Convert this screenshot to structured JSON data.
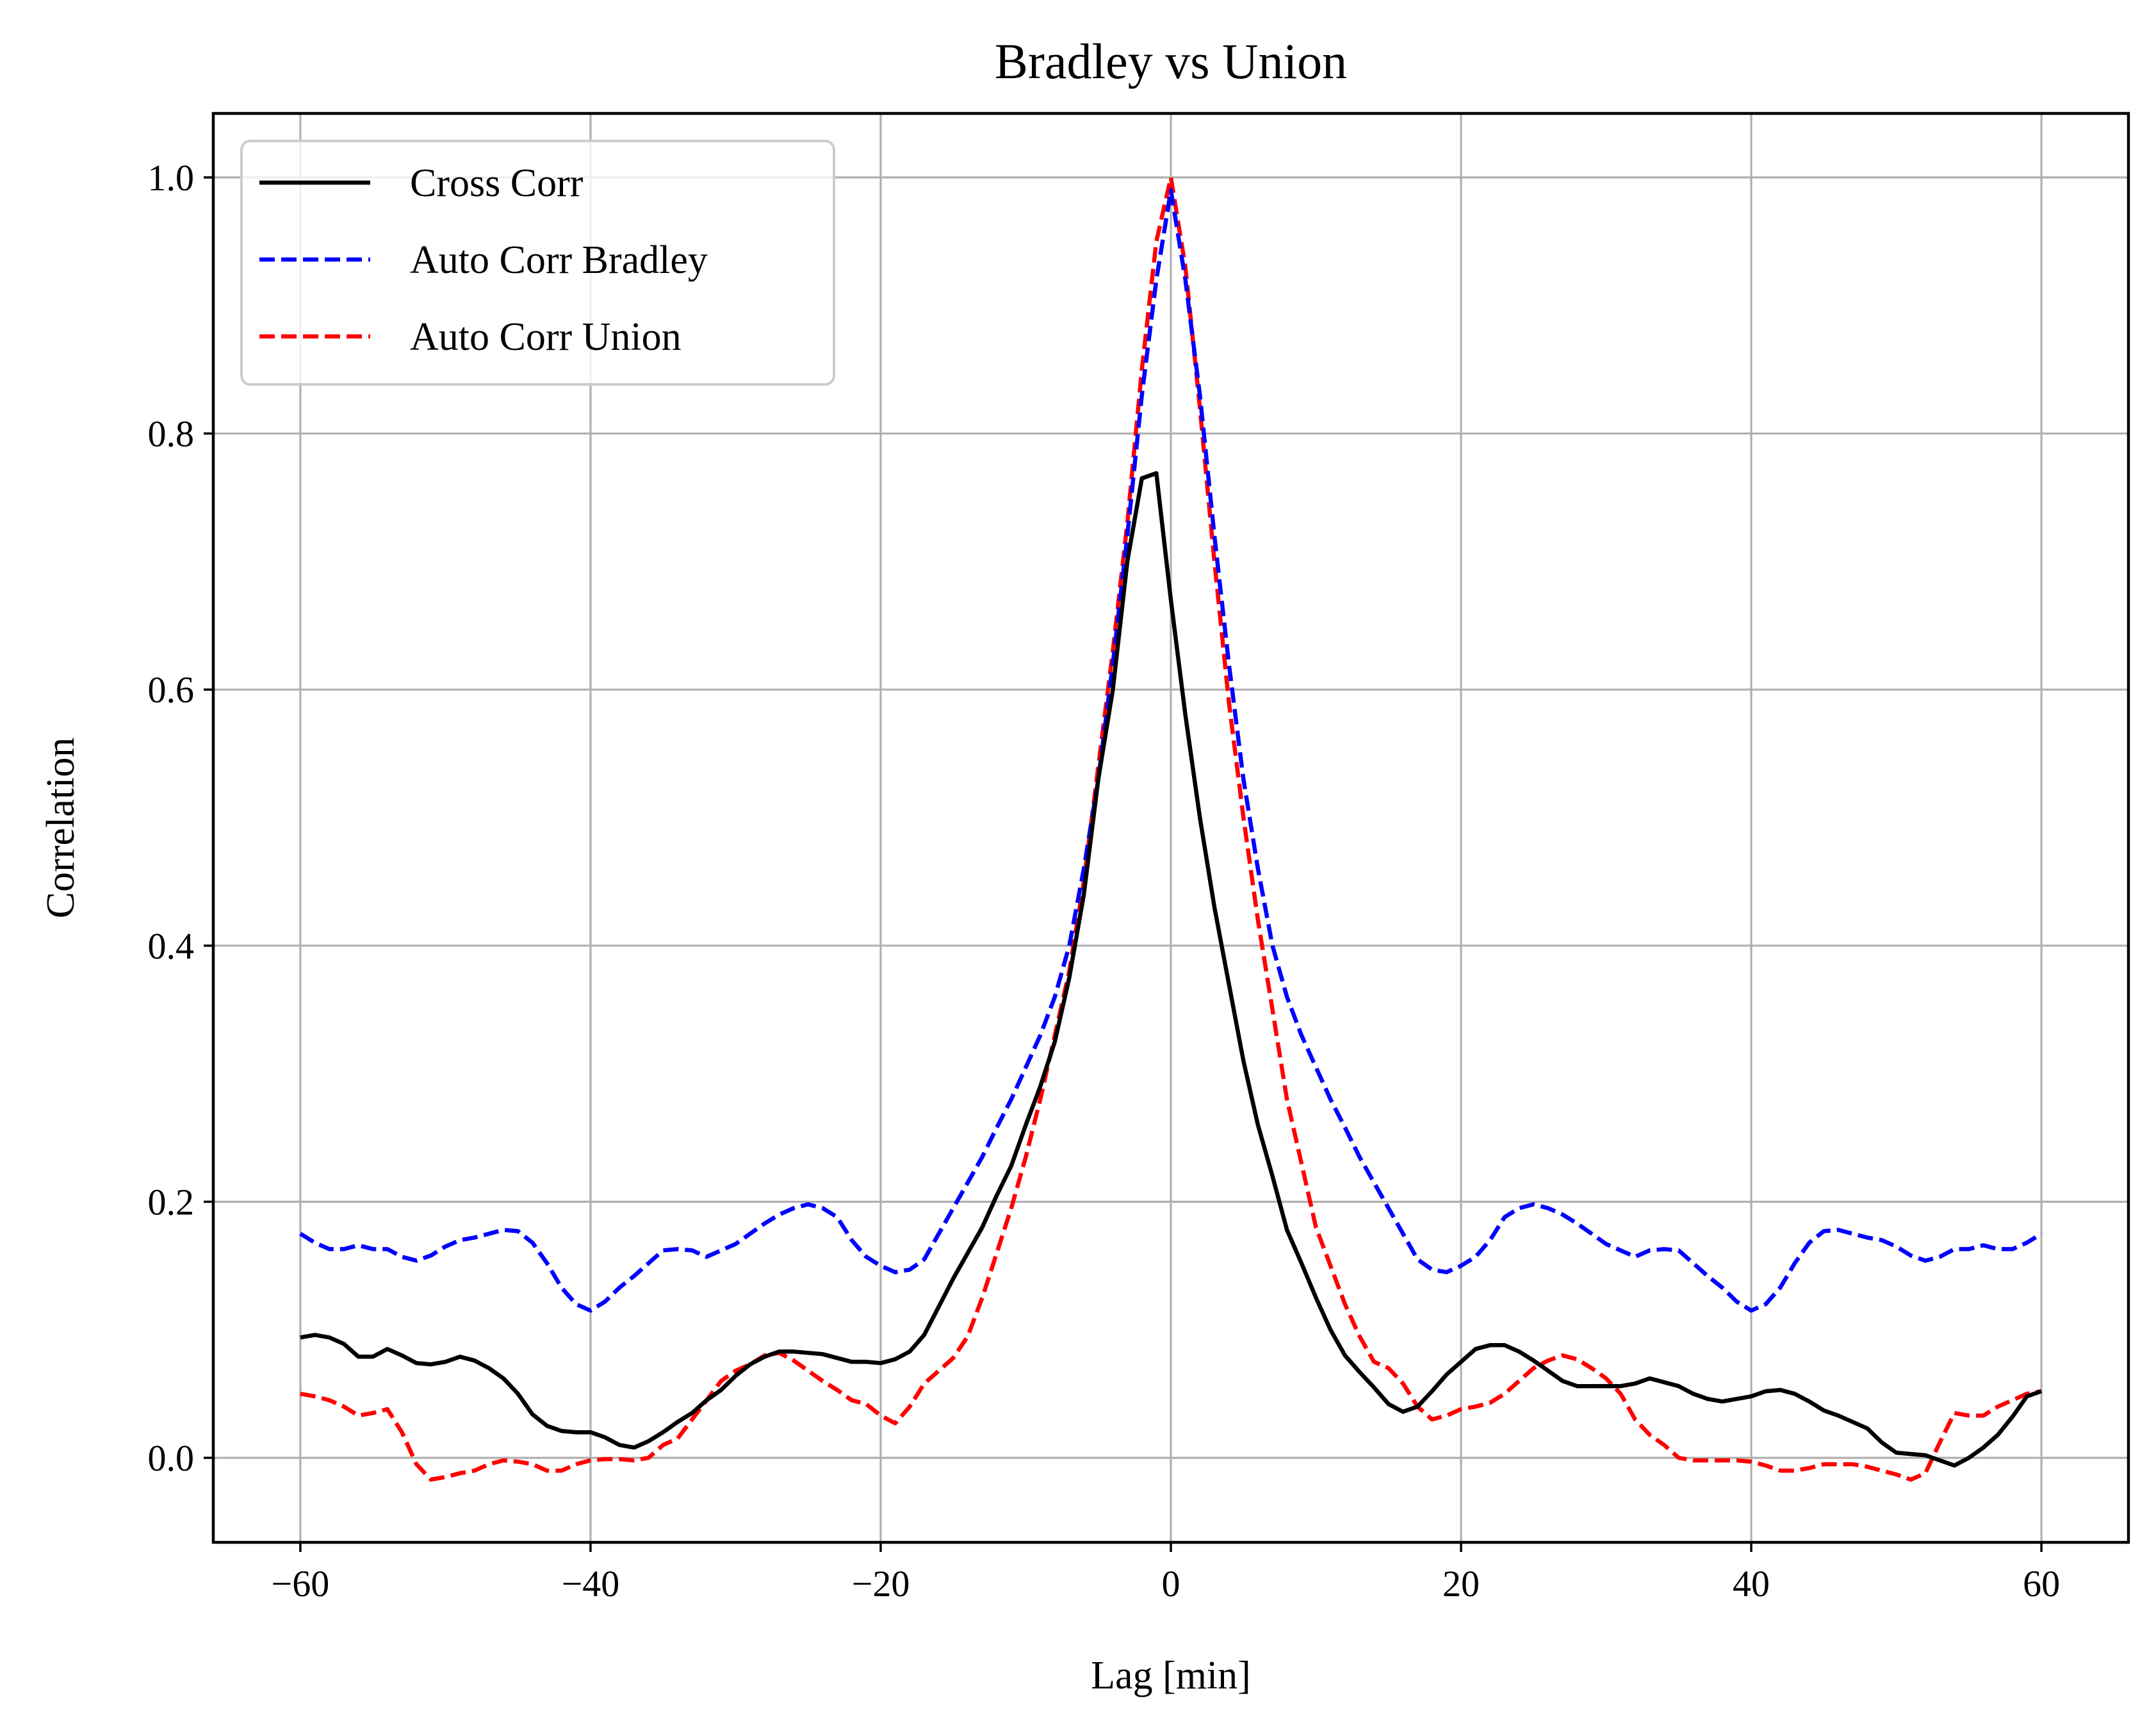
{
  "chart_data": {
    "type": "line",
    "title": "Bradley vs Union",
    "xlabel": "Lag [min]",
    "ylabel": "Correlation",
    "xlim": [
      -66,
      66
    ],
    "ylim": [
      -0.066,
      1.05
    ],
    "xticks": [
      -60,
      -40,
      -20,
      0,
      20,
      40,
      60
    ],
    "xtick_labels": [
      "−60",
      "−40",
      "−20",
      "0",
      "20",
      "40",
      "60"
    ],
    "yticks": [
      0.0,
      0.2,
      0.4,
      0.6,
      0.8,
      1.0
    ],
    "ytick_labels": [
      "0.0",
      "0.2",
      "0.4",
      "0.6",
      "0.8",
      "1.0"
    ],
    "grid": true,
    "legend_position": "upper-left",
    "series": [
      {
        "name": "Cross Corr",
        "color": "#000000",
        "style": "solid",
        "x": [
          -60,
          -59,
          -58,
          -57,
          -56,
          -55,
          -54,
          -53,
          -52,
          -51,
          -50,
          -49,
          -48,
          -47,
          -46,
          -45,
          -44,
          -43,
          -42,
          -41,
          -40,
          -39,
          -38,
          -37,
          -36,
          -35,
          -34,
          -33,
          -32,
          -31,
          -30,
          -29,
          -28,
          -27,
          -26,
          -25,
          -24,
          -23,
          -22,
          -21,
          -20,
          -19,
          -18,
          -17,
          -16,
          -15,
          -14,
          -13,
          -12,
          -11,
          -10,
          -9,
          -8,
          -7,
          -6,
          -5,
          -4,
          -3,
          -2,
          -1,
          0,
          1,
          2,
          3,
          4,
          5,
          6,
          7,
          8,
          9,
          10,
          11,
          12,
          13,
          14,
          15,
          16,
          17,
          18,
          19,
          20,
          21,
          22,
          23,
          24,
          25,
          26,
          27,
          28,
          29,
          30,
          31,
          32,
          33,
          34,
          35,
          36,
          37,
          38,
          39,
          40,
          41,
          42,
          43,
          44,
          45,
          46,
          47,
          48,
          49,
          50,
          51,
          52,
          53,
          54,
          55,
          56,
          57,
          58,
          59,
          60
        ],
        "y": [
          0.094,
          0.096,
          0.094,
          0.089,
          0.079,
          0.079,
          0.085,
          0.08,
          0.074,
          0.073,
          0.075,
          0.079,
          0.076,
          0.07,
          0.062,
          0.05,
          0.034,
          0.025,
          0.021,
          0.02,
          0.02,
          0.016,
          0.01,
          0.008,
          0.013,
          0.02,
          0.028,
          0.035,
          0.045,
          0.053,
          0.064,
          0.073,
          0.079,
          0.083,
          0.083,
          0.082,
          0.081,
          0.078,
          0.075,
          0.075,
          0.074,
          0.077,
          0.083,
          0.096,
          0.118,
          0.14,
          0.16,
          0.18,
          0.205,
          0.228,
          0.26,
          0.29,
          0.325,
          0.375,
          0.44,
          0.53,
          0.6,
          0.7,
          0.765,
          0.769,
          0.67,
          0.58,
          0.5,
          0.43,
          0.37,
          0.31,
          0.26,
          0.22,
          0.178,
          0.152,
          0.125,
          0.1,
          0.08,
          0.067,
          0.055,
          0.042,
          0.036,
          0.04,
          0.052,
          0.065,
          0.075,
          0.085,
          0.088,
          0.088,
          0.083,
          0.076,
          0.068,
          0.06,
          0.056,
          0.056,
          0.056,
          0.056,
          0.058,
          0.062,
          0.059,
          0.056,
          0.05,
          0.046,
          0.044,
          0.046,
          0.048,
          0.052,
          0.053,
          0.05,
          0.044,
          0.037,
          0.033,
          0.028,
          0.023,
          0.012,
          0.004,
          0.003,
          0.002,
          -0.002,
          -0.006,
          0.0,
          0.008,
          0.018,
          0.032,
          0.048,
          0.052
        ]
      },
      {
        "name": "Auto Corr Bradley",
        "color": "#0000ff",
        "style": "dashed",
        "x": [
          -60,
          -59,
          -58,
          -57,
          -56,
          -55,
          -54,
          -53,
          -52,
          -51,
          -50,
          -49,
          -48,
          -47,
          -46,
          -45,
          -44,
          -43,
          -42,
          -41,
          -40,
          -39,
          -38,
          -37,
          -36,
          -35,
          -34,
          -33,
          -32,
          -31,
          -30,
          -29,
          -28,
          -27,
          -26,
          -25,
          -24,
          -23,
          -22,
          -21,
          -20,
          -19,
          -18,
          -17,
          -16,
          -15,
          -14,
          -13,
          -12,
          -11,
          -10,
          -9,
          -8,
          -7,
          -6,
          -5,
          -4,
          -3,
          -2,
          -1,
          0,
          1,
          2,
          3,
          4,
          5,
          6,
          7,
          8,
          9,
          10,
          11,
          12,
          13,
          14,
          15,
          16,
          17,
          18,
          19,
          20,
          21,
          22,
          23,
          24,
          25,
          26,
          27,
          28,
          29,
          30,
          31,
          32,
          33,
          34,
          35,
          36,
          37,
          38,
          39,
          40,
          41,
          42,
          43,
          44,
          45,
          46,
          47,
          48,
          49,
          50,
          51,
          52,
          53,
          54,
          55,
          56,
          57,
          58,
          59,
          60
        ],
        "y": [
          0.175,
          0.168,
          0.163,
          0.163,
          0.166,
          0.163,
          0.163,
          0.157,
          0.154,
          0.158,
          0.165,
          0.17,
          0.172,
          0.175,
          0.178,
          0.177,
          0.168,
          0.152,
          0.133,
          0.12,
          0.115,
          0.122,
          0.133,
          0.142,
          0.152,
          0.162,
          0.163,
          0.162,
          0.157,
          0.162,
          0.167,
          0.175,
          0.183,
          0.19,
          0.195,
          0.198,
          0.195,
          0.188,
          0.17,
          0.157,
          0.15,
          0.145,
          0.147,
          0.155,
          0.175,
          0.195,
          0.215,
          0.235,
          0.258,
          0.28,
          0.305,
          0.33,
          0.36,
          0.4,
          0.46,
          0.53,
          0.62,
          0.72,
          0.83,
          0.92,
          0.99,
          0.92,
          0.83,
          0.72,
          0.62,
          0.53,
          0.46,
          0.4,
          0.36,
          0.33,
          0.305,
          0.28,
          0.258,
          0.235,
          0.215,
          0.195,
          0.175,
          0.155,
          0.147,
          0.145,
          0.15,
          0.157,
          0.17,
          0.188,
          0.195,
          0.198,
          0.195,
          0.19,
          0.183,
          0.175,
          0.167,
          0.162,
          0.157,
          0.162,
          0.163,
          0.162,
          0.152,
          0.142,
          0.133,
          0.122,
          0.115,
          0.12,
          0.133,
          0.152,
          0.168,
          0.177,
          0.178,
          0.175,
          0.172,
          0.17,
          0.165,
          0.158,
          0.154,
          0.157,
          0.163,
          0.163,
          0.166,
          0.163,
          0.163,
          0.168,
          0.175
        ]
      },
      {
        "name": "Auto Corr Union",
        "color": "#ff0000",
        "style": "dashed",
        "x": [
          -60,
          -59,
          -58,
          -57,
          -56,
          -55,
          -54,
          -53,
          -52,
          -51,
          -50,
          -49,
          -48,
          -47,
          -46,
          -45,
          -44,
          -43,
          -42,
          -41,
          -40,
          -39,
          -38,
          -37,
          -36,
          -35,
          -34,
          -33,
          -32,
          -31,
          -30,
          -29,
          -28,
          -27,
          -26,
          -25,
          -24,
          -23,
          -22,
          -21,
          -20,
          -19,
          -18,
          -17,
          -16,
          -15,
          -14,
          -13,
          -12,
          -11,
          -10,
          -9,
          -8,
          -7,
          -6,
          -5,
          -4,
          -3,
          -2,
          -1,
          0,
          1,
          2,
          3,
          4,
          5,
          6,
          7,
          8,
          9,
          10,
          11,
          12,
          13,
          14,
          15,
          16,
          17,
          18,
          19,
          20,
          21,
          22,
          23,
          24,
          25,
          26,
          27,
          28,
          29,
          30,
          31,
          32,
          33,
          34,
          35,
          36,
          37,
          38,
          39,
          40,
          41,
          42,
          43,
          44,
          45,
          46,
          47,
          48,
          49,
          50,
          51,
          52,
          53,
          54,
          55,
          56,
          57,
          58,
          59,
          60
        ],
        "y": [
          0.05,
          0.048,
          0.045,
          0.04,
          0.033,
          0.035,
          0.038,
          0.02,
          -0.005,
          -0.017,
          -0.015,
          -0.012,
          -0.01,
          -0.005,
          -0.002,
          -0.003,
          -0.005,
          -0.01,
          -0.01,
          -0.005,
          -0.002,
          -0.001,
          -0.001,
          -0.002,
          0.0,
          0.01,
          0.015,
          0.03,
          0.045,
          0.06,
          0.068,
          0.073,
          0.08,
          0.082,
          0.076,
          0.068,
          0.06,
          0.053,
          0.045,
          0.042,
          0.033,
          0.027,
          0.04,
          0.058,
          0.068,
          0.078,
          0.095,
          0.125,
          0.16,
          0.195,
          0.235,
          0.28,
          0.33,
          0.38,
          0.45,
          0.54,
          0.63,
          0.73,
          0.85,
          0.95,
          1.0,
          0.93,
          0.82,
          0.7,
          0.59,
          0.5,
          0.42,
          0.35,
          0.28,
          0.23,
          0.18,
          0.15,
          0.12,
          0.095,
          0.075,
          0.07,
          0.058,
          0.04,
          0.03,
          0.033,
          0.038,
          0.04,
          0.043,
          0.05,
          0.06,
          0.07,
          0.076,
          0.08,
          0.077,
          0.07,
          0.062,
          0.05,
          0.03,
          0.018,
          0.01,
          0.0,
          -0.002,
          -0.002,
          -0.002,
          -0.002,
          -0.003,
          -0.006,
          -0.01,
          -0.01,
          -0.008,
          -0.005,
          -0.005,
          -0.005,
          -0.007,
          -0.01,
          -0.013,
          -0.017,
          -0.012,
          0.012,
          0.035,
          0.033,
          0.033,
          0.04,
          0.045,
          0.05,
          0.052
        ]
      }
    ]
  }
}
